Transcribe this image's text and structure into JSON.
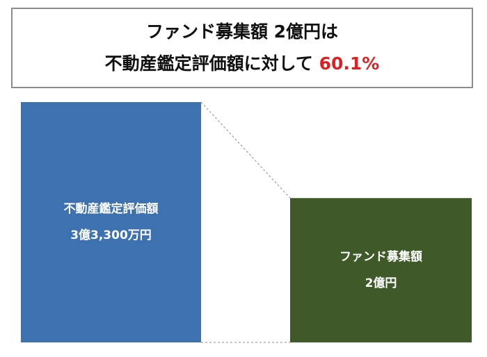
{
  "title": {
    "line1": "ファンド募集額 2億円は",
    "line2_prefix": "不動産鑑定評価額に対して ",
    "line2_highlight": "60.1%"
  },
  "colors": {
    "appraisal_bar": "#3e71b0",
    "fund_bar": "#3f5a28",
    "highlight": "#e02020",
    "connector": "#8c8c8c"
  },
  "chart_data": {
    "type": "bar",
    "categories": [
      "不動産鑑定評価額",
      "ファンド募集額"
    ],
    "values": [
      33300,
      20000
    ],
    "unit": "万円",
    "value_labels": [
      "3億3,300万円",
      "2億円"
    ],
    "ratio_percent": 60.1,
    "connector_lines": true,
    "grid": false,
    "legend": "none"
  }
}
